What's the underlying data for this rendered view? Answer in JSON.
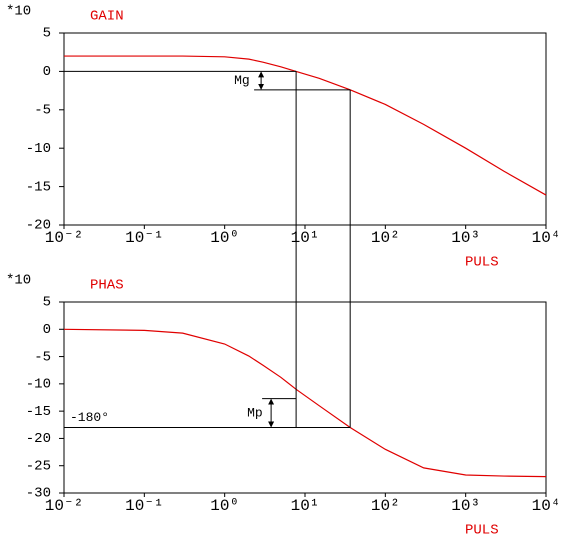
{
  "chart_data": [
    {
      "type": "line",
      "title": "GAIN",
      "ylabel": "*10",
      "xlabel": "PULS",
      "log_x": true,
      "color": "#e00000",
      "x": [
        0.01,
        0.1,
        0.3,
        1,
        2,
        3,
        5,
        7.75,
        15,
        36.5,
        100,
        300,
        1000,
        3000,
        10000
      ],
      "values": [
        2,
        2,
        2,
        1.9,
        1.6,
        1.2,
        0.6,
        0,
        -0.9,
        -2.4,
        -4.3,
        -6.9,
        -10,
        -13,
        -16.1
      ],
      "xlim": [
        0.01,
        10000
      ],
      "xticks": [
        {
          "value": 0.01,
          "label": "10⁻²"
        },
        {
          "value": 0.1,
          "label": "10⁻¹"
        },
        {
          "value": 1,
          "label": "10⁰"
        },
        {
          "value": 10,
          "label": "10¹"
        },
        {
          "value": 100,
          "label": "10²"
        },
        {
          "value": 1000,
          "label": "10³"
        },
        {
          "value": 10000,
          "label": "10⁴"
        }
      ],
      "ylim": [
        -20,
        5
      ],
      "yticks": [
        -20,
        -15,
        -10,
        -5,
        0,
        5
      ],
      "reference": {
        "x": [
          7.75,
          36.5
        ],
        "y": [
          0,
          -2.4
        ]
      },
      "annotation": "Mg"
    },
    {
      "type": "line",
      "title": "PHAS",
      "ylabel": "*10",
      "xlabel": "PULS",
      "log_x": true,
      "color": "#e00000",
      "x": [
        0.01,
        0.1,
        0.3,
        1,
        2,
        3,
        5,
        7.75,
        15,
        36.5,
        100,
        300,
        1000,
        3000,
        10000
      ],
      "values": [
        0,
        -0.2,
        -0.7,
        -2.7,
        -4.9,
        -6.6,
        -8.8,
        -11,
        -14,
        -18,
        -22,
        -25.4,
        -26.7,
        -26.9,
        -27
      ],
      "xlim": [
        0.01,
        10000
      ],
      "xticks": [
        {
          "value": 0.01,
          "label": "10⁻²"
        },
        {
          "value": 0.1,
          "label": "10⁻¹"
        },
        {
          "value": 1,
          "label": "10⁰"
        },
        {
          "value": 10,
          "label": "10¹"
        },
        {
          "value": 100,
          "label": "10²"
        },
        {
          "value": 1000,
          "label": "10³"
        },
        {
          "value": 10000,
          "label": "10⁴"
        }
      ],
      "ylim": [
        -30,
        5
      ],
      "yticks": [
        -30,
        -25,
        -20,
        -15,
        -10,
        -5,
        0,
        5
      ],
      "reference": {
        "x": [
          7.75,
          36.5
        ],
        "y": [
          -18,
          -12.7
        ]
      },
      "annotation": "Mp",
      "reference_label": "-180°"
    }
  ]
}
